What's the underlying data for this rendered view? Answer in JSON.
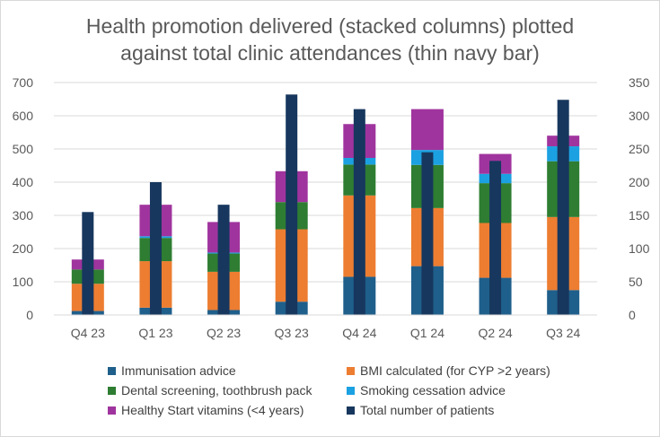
{
  "chart_data": {
    "type": "bar",
    "title_line1": "Health promotion delivered (stacked columns) plotted",
    "title_line2": "against total clinic attendances (thin navy bar)",
    "categories": [
      "Q4 23",
      "Q1 23",
      "Q2 23",
      "Q3 23",
      "Q4 24",
      "Q1 24",
      "Q2 24",
      "Q3 24"
    ],
    "series": [
      {
        "name": "Immunisation advice",
        "color": "#1f5f8b",
        "values": [
          12,
          22,
          15,
          40,
          115,
          147,
          112,
          75
        ]
      },
      {
        "name": "BMI calculated (for CYP >2 years)",
        "color": "#ed7d31",
        "values": [
          82,
          140,
          115,
          218,
          245,
          175,
          165,
          220
        ]
      },
      {
        "name": "Dental screening, toothbrush pack",
        "color": "#2e7d32",
        "values": [
          43,
          70,
          55,
          82,
          93,
          130,
          120,
          168
        ]
      },
      {
        "name": "Smoking cessation advice",
        "color": "#1ba1e2",
        "values": [
          0,
          5,
          3,
          0,
          20,
          45,
          28,
          45
        ]
      },
      {
        "name": "Healthy Start vitamins (<4 years)",
        "color": "#a0349e",
        "values": [
          30,
          95,
          92,
          93,
          102,
          123,
          60,
          32
        ]
      }
    ],
    "line_series": {
      "name": "Total number of patients",
      "color": "#17375e",
      "axis": "right",
      "values": [
        155,
        200,
        166,
        332,
        310,
        245,
        232,
        324
      ]
    },
    "y_left": {
      "min": 0,
      "max": 700,
      "ticks": [
        "0",
        "100",
        "200",
        "300",
        "400",
        "500",
        "600",
        "700"
      ]
    },
    "y_right": {
      "min": 0,
      "max": 350,
      "ticks": [
        "0",
        "50",
        "100",
        "150",
        "200",
        "250",
        "300",
        "350"
      ]
    },
    "legend_position": "bottom",
    "grid": true
  }
}
